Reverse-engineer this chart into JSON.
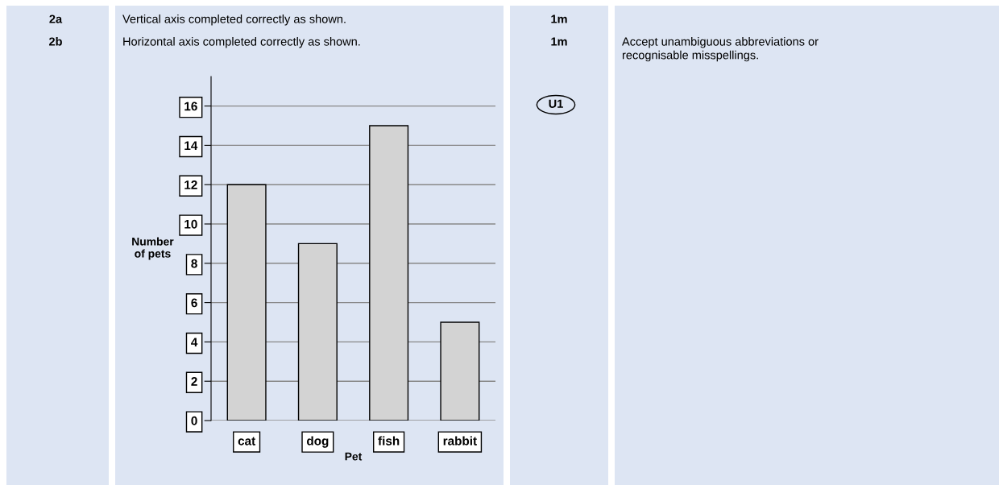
{
  "chart_data": {
    "type": "bar",
    "categories": [
      "cat",
      "dog",
      "fish",
      "rabbit"
    ],
    "values": [
      12,
      9,
      15,
      5
    ],
    "color": "#d3d3d3",
    "xlabel": "Pet",
    "ylabel": "Number\nof pets",
    "ylim": [
      0,
      17.5
    ],
    "yticks": [
      0,
      2,
      4,
      6,
      8,
      10,
      12,
      14,
      16
    ],
    "grid": "y",
    "annotations": [
      "2a",
      "Vertical axis completed correctly as shown.",
      "1m",
      "2b",
      "Horizontal axis completed correctly as shown.",
      "1m",
      "U1",
      "Accept unambiguous abbreviations or\nrecognisable misspellings."
    ]
  }
}
